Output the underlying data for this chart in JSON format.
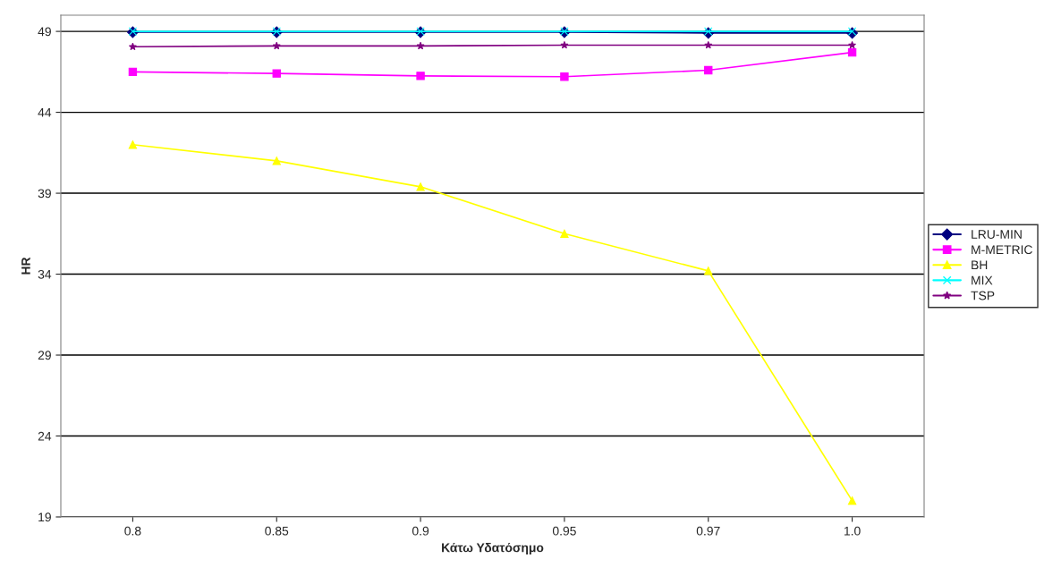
{
  "chart_data": {
    "type": "line",
    "xlabel": "Κάτω Υδατόσημο",
    "ylabel": "HR",
    "categories": [
      "0.8",
      "0.85",
      "0.9",
      "0.95",
      "0.97",
      "1.0"
    ],
    "series": [
      {
        "name": "LRU-MIN",
        "color": "#000080",
        "marker": "diamond",
        "values": [
          48.95,
          48.95,
          48.95,
          48.95,
          48.9,
          48.9
        ]
      },
      {
        "name": "M-METRIC",
        "color": "#ff00ff",
        "marker": "square",
        "values": [
          46.5,
          46.4,
          46.25,
          46.2,
          46.6,
          47.7
        ]
      },
      {
        "name": "BH",
        "color": "#ffff00",
        "marker": "triangle",
        "values": [
          42.0,
          41.0,
          39.4,
          36.5,
          34.2,
          20.0
        ]
      },
      {
        "name": "MIX",
        "color": "#00ffff",
        "marker": "cross",
        "values": [
          49.0,
          49.0,
          49.0,
          49.0,
          49.0,
          49.0
        ]
      },
      {
        "name": "TSP",
        "color": "#800080",
        "marker": "star",
        "values": [
          48.05,
          48.1,
          48.1,
          48.15,
          48.15,
          48.15
        ]
      }
    ],
    "ylim": [
      19,
      50
    ],
    "yticks": [
      19,
      24,
      29,
      34,
      39,
      44,
      49
    ],
    "grid": "y",
    "legend": "right"
  }
}
